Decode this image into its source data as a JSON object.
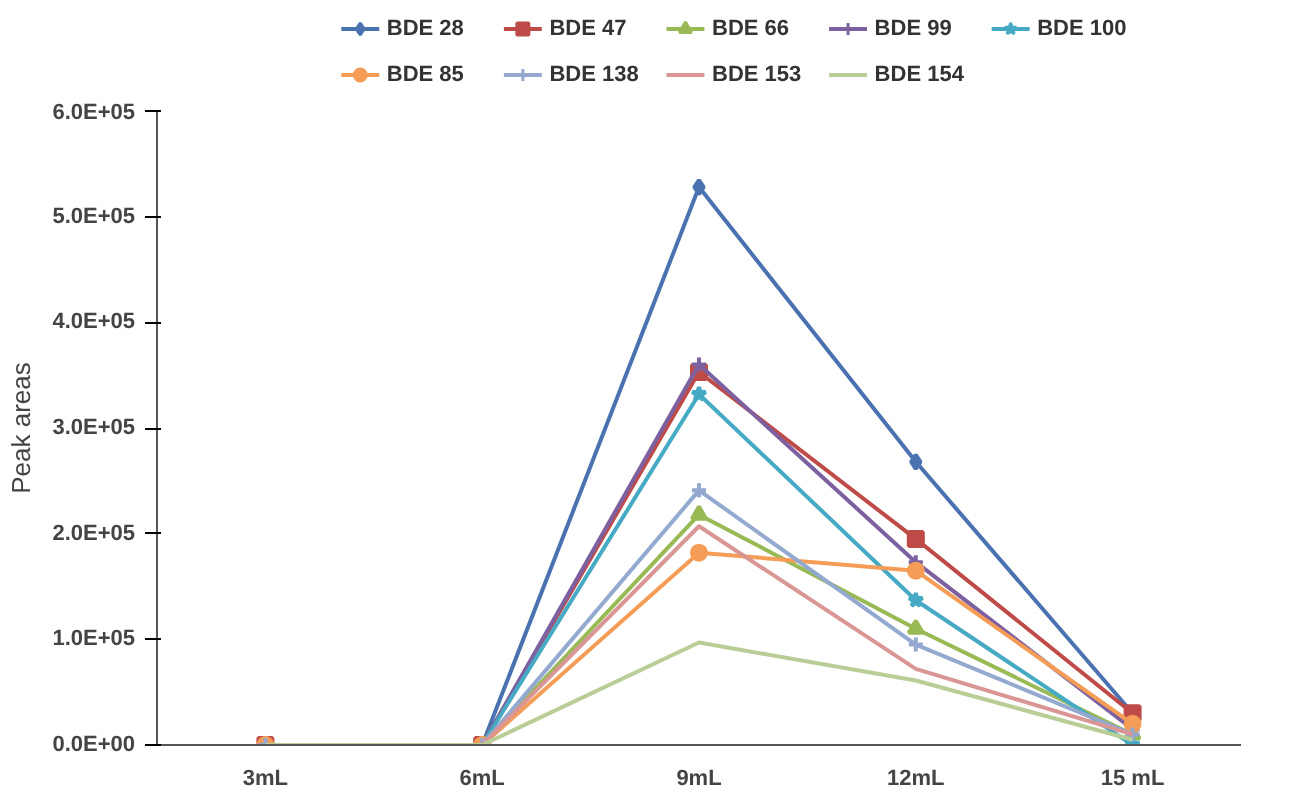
{
  "chart_data": {
    "type": "line",
    "ylabel": "Peak areas",
    "categories": [
      "3mL",
      "6mL",
      "9mL",
      "12mL",
      "15 mL"
    ],
    "series": [
      {
        "name": "BDE 28",
        "color": "#4a72b0",
        "marker": "diamond",
        "values": [
          0,
          0,
          528000,
          268000,
          30000
        ]
      },
      {
        "name": "BDE 47",
        "color": "#be4b48",
        "marker": "square",
        "values": [
          0,
          0,
          353000,
          195000,
          30000
        ]
      },
      {
        "name": "BDE 66",
        "color": "#98b954",
        "marker": "triangle",
        "values": [
          0,
          0,
          218000,
          110000,
          10000
        ]
      },
      {
        "name": "BDE 99",
        "color": "#7d60a0",
        "marker": "cross",
        "values": [
          0,
          0,
          360000,
          173000,
          15000
        ]
      },
      {
        "name": "BDE 100",
        "color": "#46aac5",
        "marker": "star",
        "values": [
          0,
          0,
          332000,
          137000,
          0
        ]
      },
      {
        "name": "BDE 85",
        "color": "#f59d56",
        "marker": "circle",
        "values": [
          0,
          0,
          182000,
          165000,
          20000
        ]
      },
      {
        "name": "BDE 138",
        "color": "#93a9cf",
        "marker": "cross",
        "values": [
          0,
          0,
          241000,
          95000,
          10000
        ]
      },
      {
        "name": "BDE 153",
        "color": "#d99694",
        "marker": "none",
        "values": [
          0,
          0,
          207000,
          72000,
          10000
        ]
      },
      {
        "name": "BDE 154",
        "color": "#b9cd96",
        "marker": "none",
        "values": [
          0,
          0,
          97000,
          61000,
          5000
        ]
      }
    ],
    "ylim": [
      0,
      600000
    ],
    "yticks": [
      {
        "value": 0,
        "label": "0.0E+00"
      },
      {
        "value": 100000,
        "label": "1.0E+05"
      },
      {
        "value": 200000,
        "label": "2.0E+05"
      },
      {
        "value": 300000,
        "label": "3.0E+05"
      },
      {
        "value": 400000,
        "label": "4.0E+05"
      },
      {
        "value": 500000,
        "label": "5.0E+05"
      },
      {
        "value": 600000,
        "label": "6.0E+05"
      }
    ],
    "grid": false,
    "legend": "top",
    "line_style": "solid"
  }
}
